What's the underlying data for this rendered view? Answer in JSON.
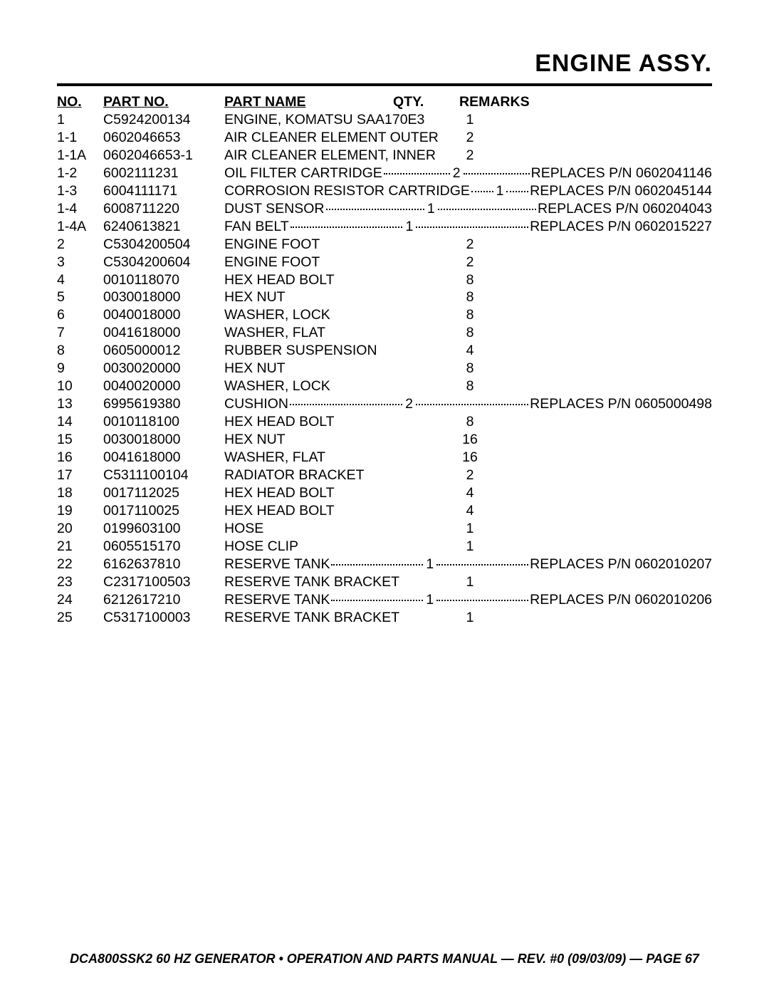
{
  "title": "ENGINE ASSY.",
  "headers": {
    "no": "NO.",
    "part_no": "PART NO.",
    "part_name": "PART NAME",
    "qty": "QTY.",
    "remarks": "REMARKS"
  },
  "rows": [
    {
      "no": "1",
      "part_no": "C5924200134",
      "part_name": "ENGINE, KOMATSU SAA170E3",
      "qty": "1",
      "remarks": ""
    },
    {
      "no": "1-1",
      "part_no": "0602046653",
      "part_name": "AIR CLEANER ELEMENT OUTER",
      "qty": "2",
      "remarks": ""
    },
    {
      "no": "1-1A",
      "part_no": "0602046653-1",
      "part_name": "AIR CLEANER ELEMENT, INNER",
      "qty": "2",
      "remarks": ""
    },
    {
      "no": "1-2",
      "part_no": "6002111231",
      "part_name": "OIL FILTER CARTRIDGE",
      "qty": "2",
      "remarks": "REPLACES P/N 0602041146"
    },
    {
      "no": "1-3",
      "part_no": "6004111171",
      "part_name": "CORROSION RESISTOR CARTRIDGE",
      "qty": "1",
      "remarks": "REPLACES P/N 0602045144"
    },
    {
      "no": "1-4",
      "part_no": "6008711220",
      "part_name": "DUST SENSOR",
      "qty": "1",
      "remarks": "REPLACES P/N 060204043"
    },
    {
      "no": "1-4A",
      "part_no": "6240613821",
      "part_name": "FAN BELT",
      "qty": "1",
      "remarks": "REPLACES P/N 0602015227"
    },
    {
      "no": "2",
      "part_no": "C5304200504",
      "part_name": "ENGINE FOOT",
      "qty": "2",
      "remarks": ""
    },
    {
      "no": "3",
      "part_no": "C5304200604",
      "part_name": "ENGINE FOOT",
      "qty": "2",
      "remarks": ""
    },
    {
      "no": "4",
      "part_no": "0010118070",
      "part_name": "HEX HEAD BOLT",
      "qty": "8",
      "remarks": ""
    },
    {
      "no": "5",
      "part_no": "0030018000",
      "part_name": "HEX NUT",
      "qty": "8",
      "remarks": ""
    },
    {
      "no": "6",
      "part_no": "0040018000",
      "part_name": "WASHER, LOCK",
      "qty": "8",
      "remarks": ""
    },
    {
      "no": "7",
      "part_no": "0041618000",
      "part_name": "WASHER, FLAT",
      "qty": "8",
      "remarks": ""
    },
    {
      "no": "8",
      "part_no": "0605000012",
      "part_name": "RUBBER SUSPENSION",
      "qty": "4",
      "remarks": ""
    },
    {
      "no": "9",
      "part_no": "0030020000",
      "part_name": "HEX NUT",
      "qty": "8",
      "remarks": ""
    },
    {
      "no": "10",
      "part_no": "0040020000",
      "part_name": "WASHER, LOCK",
      "qty": "8",
      "remarks": ""
    },
    {
      "no": "13",
      "part_no": "6995619380",
      "part_name": "CUSHION",
      "qty": "2",
      "remarks": "REPLACES P/N 0605000498"
    },
    {
      "no": "14",
      "part_no": "0010118100",
      "part_name": "HEX HEAD BOLT",
      "qty": "8",
      "remarks": ""
    },
    {
      "no": "15",
      "part_no": "0030018000",
      "part_name": "HEX NUT",
      "qty": "16",
      "remarks": ""
    },
    {
      "no": "16",
      "part_no": "0041618000",
      "part_name": "WASHER, FLAT",
      "qty": "16",
      "remarks": ""
    },
    {
      "no": "17",
      "part_no": "C5311100104",
      "part_name": "RADIATOR BRACKET",
      "qty": "2",
      "remarks": ""
    },
    {
      "no": "18",
      "part_no": "0017112025",
      "part_name": "HEX HEAD BOLT",
      "qty": "4",
      "remarks": ""
    },
    {
      "no": "19",
      "part_no": "0017110025",
      "part_name": "HEX HEAD BOLT",
      "qty": "4",
      "remarks": ""
    },
    {
      "no": "20",
      "part_no": "0199603100",
      "part_name": "HOSE",
      "qty": "1",
      "remarks": ""
    },
    {
      "no": "21",
      "part_no": "0605515170",
      "part_name": "HOSE CLIP",
      "qty": "1",
      "remarks": ""
    },
    {
      "no": "22",
      "part_no": "6162637810",
      "part_name": "RESERVE TANK",
      "qty": "1",
      "remarks": "REPLACES P/N 0602010207"
    },
    {
      "no": "23",
      "part_no": "C2317100503",
      "part_name": "RESERVE TANK BRACKET",
      "qty": "1",
      "remarks": ""
    },
    {
      "no": "24",
      "part_no": "6212617210",
      "part_name": "RESERVE TANK",
      "qty": "1",
      "remarks": "REPLACES P/N 0602010206"
    },
    {
      "no": "25",
      "part_no": "C5317100003",
      "part_name": "RESERVE TANK BRACKET",
      "qty": "1",
      "remarks": ""
    }
  ],
  "footer": "DCA800SSK2 60 HZ GENERATOR • OPERATION AND PARTS MANUAL — REV. #0 (09/03/09) — PAGE 67"
}
